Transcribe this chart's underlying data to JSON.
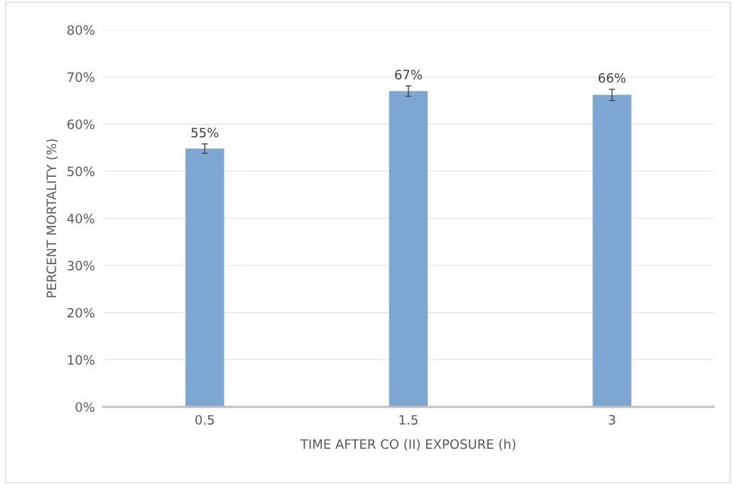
{
  "chart_data": {
    "type": "bar",
    "xlabel": "TIME AFTER CO (II) EXPOSURE (h)",
    "ylabel": "PERCENT MORTALITY (%)",
    "categories": [
      "0.5",
      "1.5",
      "3"
    ],
    "values": [
      54.8,
      67.0,
      66.2
    ],
    "errors": [
      1.0,
      1.1,
      1.2
    ],
    "value_labels": [
      "55%",
      "67%",
      "66%"
    ],
    "color": "#7ea6d2",
    "ylim": [
      0,
      80
    ],
    "yticks": [
      {
        "value": 0,
        "label": "0%"
      },
      {
        "value": 10,
        "label": "10%"
      },
      {
        "value": 20,
        "label": "20%"
      },
      {
        "value": 30,
        "label": "30%"
      },
      {
        "value": 40,
        "label": "40%"
      },
      {
        "value": 50,
        "label": "50%"
      },
      {
        "value": 60,
        "label": "60%"
      },
      {
        "value": 70,
        "label": "70%"
      },
      {
        "value": 80,
        "label": "80%"
      }
    ],
    "grid": "y"
  }
}
